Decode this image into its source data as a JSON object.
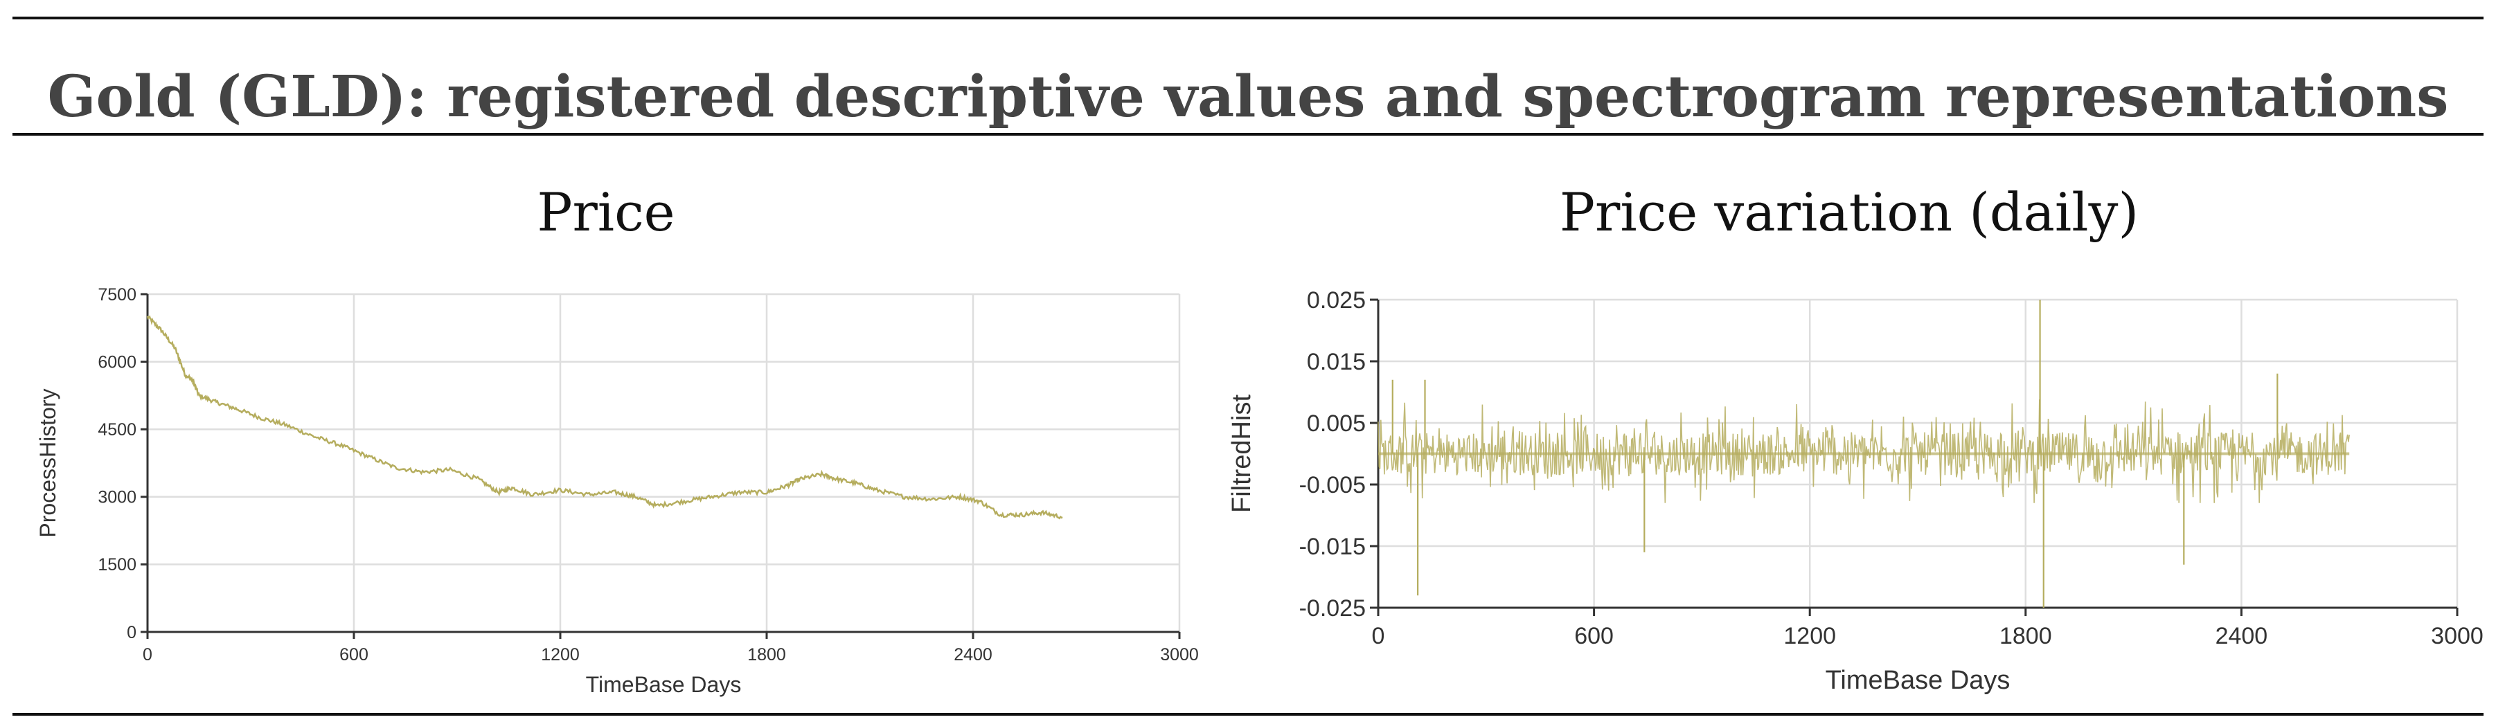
{
  "figure": {
    "title": "Gold (GLD): registered descriptive values and spectrogram representations",
    "line_color": "#b5ad5e"
  },
  "chart_data": [
    {
      "type": "line",
      "title": "Price",
      "xlabel": "TimeBase Days",
      "ylabel": "ProcessHistory",
      "xlim": [
        0,
        3000
      ],
      "ylim": [
        0,
        7500
      ],
      "xticks": [
        0,
        600,
        1200,
        1800,
        2400,
        3000
      ],
      "yticks": [
        0,
        1500,
        3000,
        4500,
        6000,
        7500
      ],
      "xtick_labels": [
        "0",
        "600",
        "1200",
        "1800",
        "2400",
        "3000"
      ],
      "ytick_labels": [
        "0",
        "1500",
        "3000",
        "4500",
        "6000",
        "7500"
      ],
      "grid": true,
      "series": [
        {
          "x": [
            0,
            40,
            80,
            110,
            130,
            150,
            200,
            260,
            330,
            400,
            480,
            560,
            640,
            720,
            800,
            880,
            960,
            1020,
            1060,
            1120,
            1200,
            1280,
            1360,
            1420,
            1480,
            1560,
            1640,
            1720,
            1800,
            1860,
            1900,
            1960,
            2000,
            2060,
            2120,
            2200,
            2280,
            2360,
            2420,
            2480,
            2540,
            2600,
            2660
          ],
          "y": [
            7000,
            6700,
            6300,
            5700,
            5600,
            5250,
            5100,
            4950,
            4750,
            4600,
            4350,
            4150,
            3900,
            3650,
            3550,
            3600,
            3400,
            3100,
            3200,
            3050,
            3150,
            3050,
            3100,
            3000,
            2800,
            2900,
            3000,
            3100,
            3100,
            3250,
            3400,
            3500,
            3400,
            3300,
            3150,
            3000,
            2950,
            3000,
            2900,
            2600,
            2600,
            2650,
            2550
          ]
        }
      ]
    },
    {
      "type": "line",
      "title": "Price variation (daily)",
      "xlabel": "TimeBase Days",
      "ylabel": "FiltredHist",
      "xlim": [
        0,
        3000
      ],
      "ylim": [
        -0.025,
        0.025
      ],
      "xticks": [
        0,
        600,
        1200,
        1800,
        2400,
        3000
      ],
      "yticks": [
        -0.025,
        -0.015,
        -0.005,
        0.005,
        0.015,
        0.025
      ],
      "xtick_labels": [
        "0",
        "600",
        "1200",
        "1800",
        "2400",
        "3000"
      ],
      "ytick_labels": [
        "-0.025",
        "-0.015",
        "-0.005",
        "0.005",
        "0.015",
        "0.025"
      ],
      "grid": true,
      "series": [
        {
          "x_range": [
            0,
            2700
          ],
          "typical_range": [
            -0.008,
            0.011
          ],
          "extremes": [
            {
              "x": 40,
              "y": 0.012
            },
            {
              "x": 110,
              "y": -0.023
            },
            {
              "x": 130,
              "y": 0.012
            },
            {
              "x": 740,
              "y": -0.016
            },
            {
              "x": 1840,
              "y": 0.025
            },
            {
              "x": 1850,
              "y": -0.025
            },
            {
              "x": 2240,
              "y": -0.018
            },
            {
              "x": 2500,
              "y": 0.013
            }
          ]
        }
      ]
    }
  ]
}
